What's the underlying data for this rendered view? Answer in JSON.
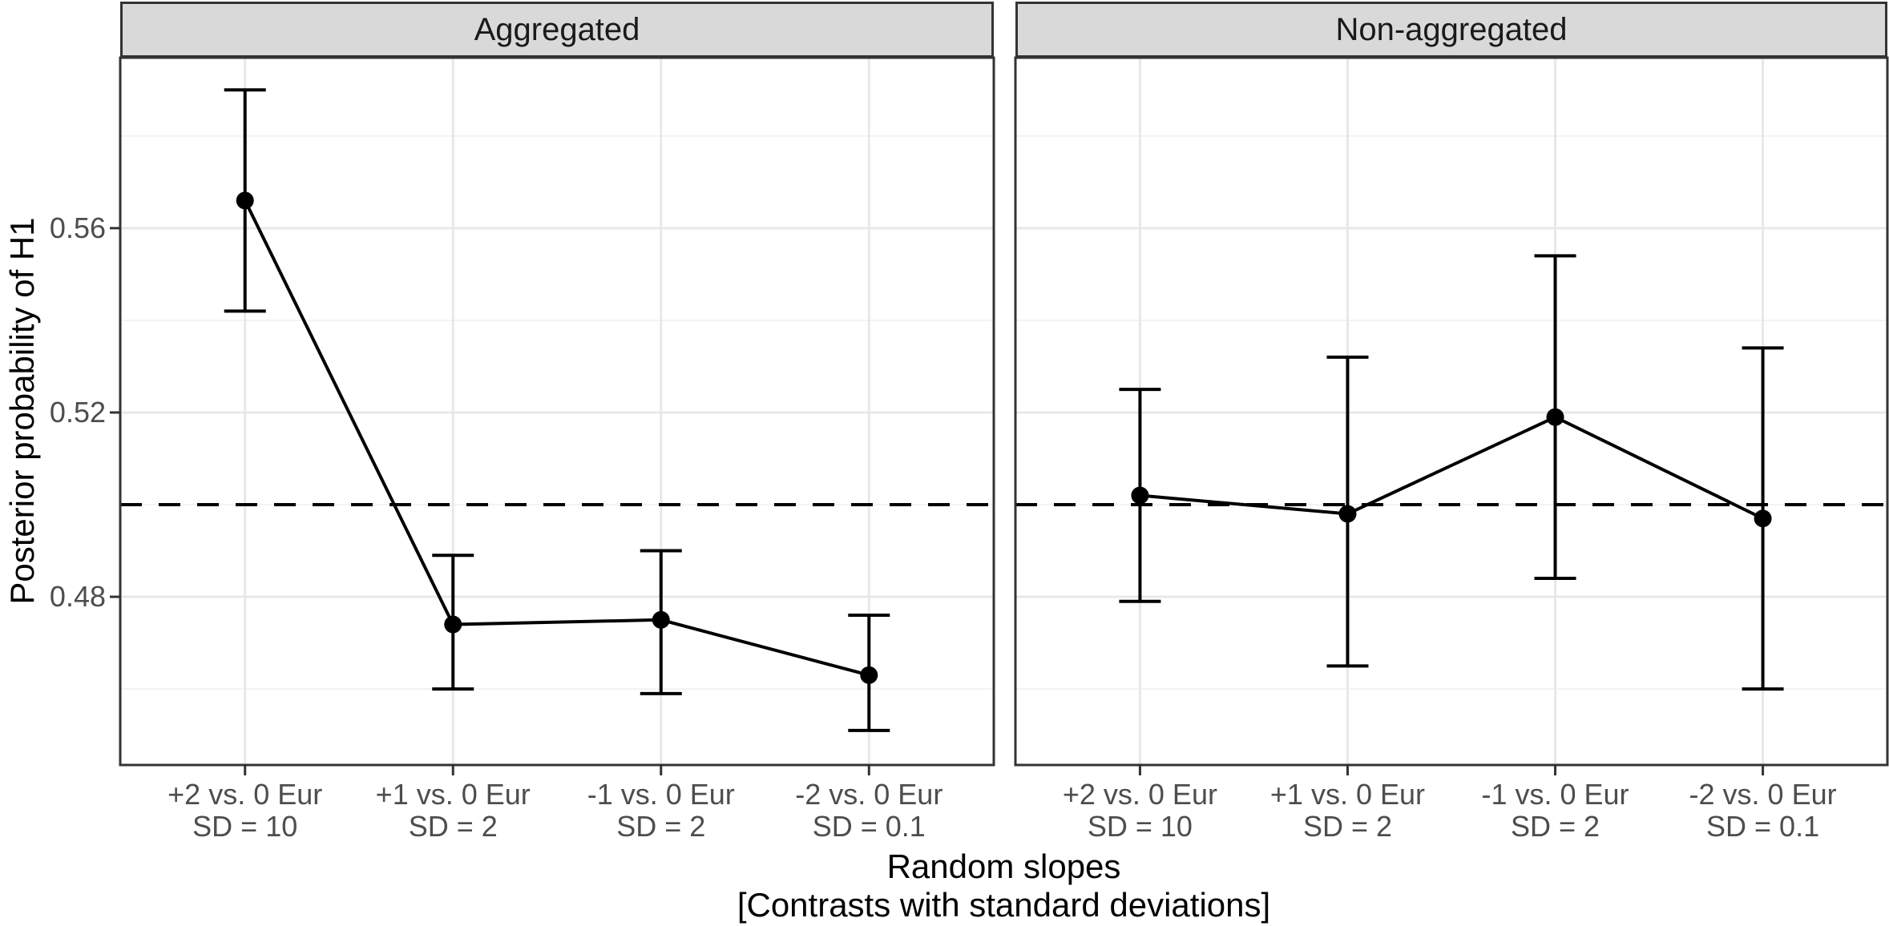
{
  "chart_data": {
    "type": "line",
    "title": "",
    "ylabel": "Posterior probability of H1",
    "xlabel": "Random slopes [Contrasts with standard deviations]",
    "xlabel_line1": "Random slopes",
    "xlabel_line2": "[Contrasts with standard deviations]",
    "ylim": [
      0.4435,
      0.597
    ],
    "grid": true,
    "legend_position": "none",
    "y_major_ticks": [
      {
        "value": 0.48,
        "label": "0.48"
      },
      {
        "value": 0.52,
        "label": "0.52"
      },
      {
        "value": 0.56,
        "label": "0.56"
      }
    ],
    "y_minor_gridlines": [
      0.46,
      0.5,
      0.54,
      0.58
    ],
    "reference_line": {
      "y": 0.5,
      "style": "dashed",
      "color": "#000000"
    },
    "categories": [
      {
        "line1": "+2 vs. 0 Eur",
        "line2": "SD = 10"
      },
      {
        "line1": "+1 vs. 0 Eur",
        "line2": "SD = 2"
      },
      {
        "line1": "-1 vs. 0 Eur",
        "line2": "SD = 2"
      },
      {
        "line1": "-2 vs. 0 Eur",
        "line2": "SD = 0.1"
      }
    ],
    "facets": [
      {
        "label": "Aggregated",
        "series": {
          "name": "Posterior probability of H1",
          "means": [
            0.566,
            0.474,
            0.475,
            0.463
          ],
          "ci_lower": [
            0.542,
            0.46,
            0.459,
            0.451
          ],
          "ci_upper": [
            0.59,
            0.489,
            0.49,
            0.476
          ]
        }
      },
      {
        "label": "Non-aggregated",
        "series": {
          "name": "Posterior probability of H1",
          "means": [
            0.502,
            0.498,
            0.519,
            0.497
          ],
          "ci_lower": [
            0.479,
            0.465,
            0.484,
            0.46
          ],
          "ci_upper": [
            0.525,
            0.532,
            0.554,
            0.534
          ]
        }
      }
    ],
    "colors": {
      "data": "#000000",
      "strip_fill": "#d9d9d9",
      "panel_border": "#333333",
      "grid_major": "#e8e8e8",
      "grid_minor": "#f0f0f0",
      "axis_text": "#4d4d4d",
      "tick_mark": "#333333"
    }
  }
}
